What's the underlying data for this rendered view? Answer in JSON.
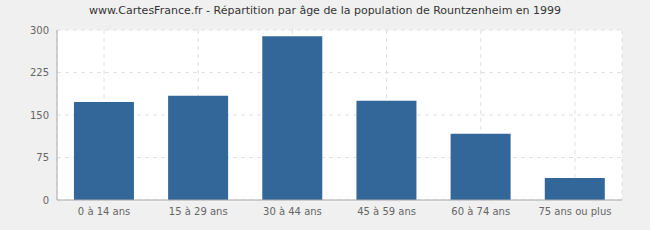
{
  "chart_data": {
    "type": "bar",
    "title": "www.CartesFrance.fr - Répartition par âge de la population de Rountzenheim en 1999",
    "categories": [
      "0 à 14 ans",
      "15 à 29 ans",
      "30 à 44 ans",
      "45 à 59 ans",
      "60 à 74 ans",
      "75 ans ou plus"
    ],
    "values": [
      173,
      184,
      289,
      175,
      117,
      39
    ],
    "color": "#336699",
    "ylim": [
      0,
      300
    ],
    "yticks": [
      0,
      75,
      150,
      225,
      300
    ],
    "grid": true
  }
}
